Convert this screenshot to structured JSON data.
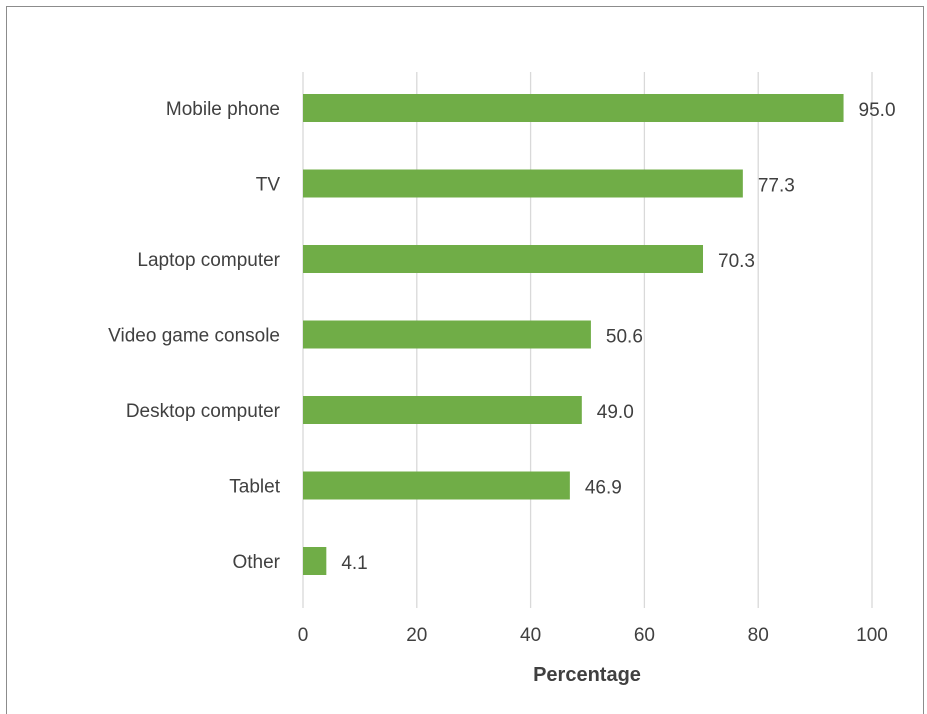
{
  "chart_data": {
    "type": "bar",
    "orientation": "horizontal",
    "categories": [
      "Mobile phone",
      "TV",
      "Laptop computer",
      "Video game console",
      "Desktop computer",
      "Tablet",
      "Other"
    ],
    "values": [
      95.0,
      77.3,
      70.3,
      50.6,
      49.0,
      46.9,
      4.1
    ],
    "value_labels": [
      "95.0",
      "77.3",
      "70.3",
      "50.6",
      "49.0",
      "46.9",
      "4.1"
    ],
    "xlabel": "Percentage",
    "ylabel": "",
    "xlim": [
      0,
      100
    ],
    "xticks": [
      0,
      20,
      40,
      60,
      80,
      100
    ],
    "grid": "vertical",
    "legend": "none",
    "bar_color": "#70ad47",
    "grid_color": "#d9d9d9",
    "text_color": "#404040"
  }
}
